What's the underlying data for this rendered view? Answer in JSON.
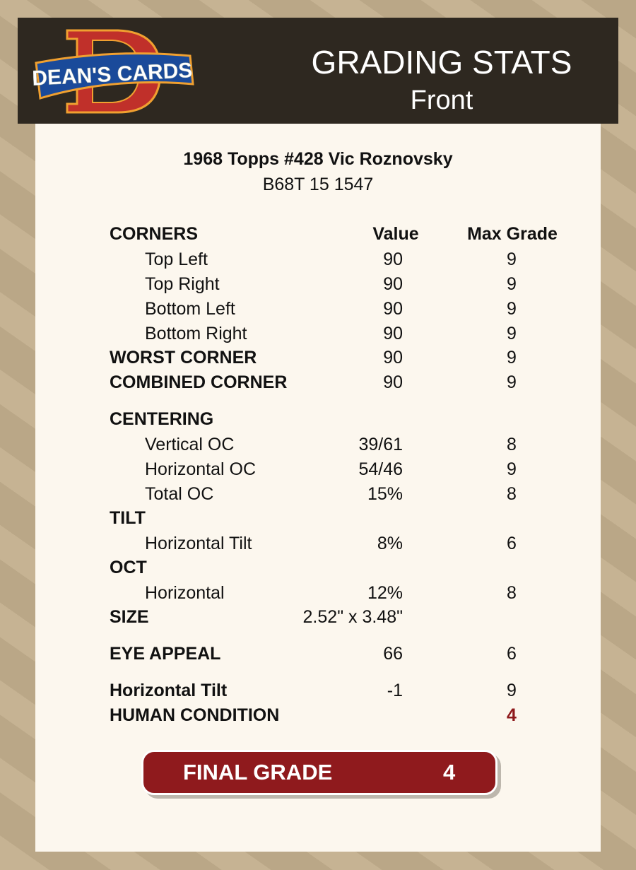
{
  "header": {
    "logo_text": "DEAN'S CARDS",
    "title": "GRADING STATS",
    "subtitle": "Front"
  },
  "card": {
    "title": "1968 Topps #428 Vic Roznovsky",
    "code": "B68T 15 1547"
  },
  "columns": {
    "value": "Value",
    "max_grade": "Max Grade"
  },
  "rows": [
    {
      "label": "CORNERS"
    },
    {
      "label": "Top Left",
      "value": "90",
      "max": "9"
    },
    {
      "label": "Top Right",
      "value": "90",
      "max": "9"
    },
    {
      "label": "Bottom Left",
      "value": "90",
      "max": "9"
    },
    {
      "label": "Bottom Right",
      "value": "90",
      "max": "9"
    },
    {
      "label": "WORST CORNER",
      "value": "90",
      "max": "9"
    },
    {
      "label": "COMBINED CORNER",
      "value": "90",
      "max": "9"
    },
    {
      "label": "CENTERING"
    },
    {
      "label": "Vertical OC",
      "value": "39/61",
      "max": "8"
    },
    {
      "label": "Horizontal OC",
      "value": "54/46",
      "max": "9"
    },
    {
      "label": "Total OC",
      "value": "15%",
      "max": "8"
    },
    {
      "label": "TILT"
    },
    {
      "label": "Horizontal Tilt",
      "value": "8%",
      "max": "6"
    },
    {
      "label": "OCT"
    },
    {
      "label": "Horizontal",
      "value": "12%",
      "max": "8"
    },
    {
      "label": "SIZE",
      "value": "2.52\" x 3.48\""
    },
    {
      "label": "EYE APPEAL",
      "value": "66",
      "max": "6"
    },
    {
      "label": "Horizontal Tilt",
      "value": "-1",
      "max": "9"
    },
    {
      "label": "HUMAN CONDITION",
      "max": "4"
    }
  ],
  "final": {
    "label": "FINAL GRADE",
    "value": "4"
  },
  "colors": {
    "header_bg": "#2e2820",
    "panel_bg": "#fcf7ee",
    "accent_red": "#8f1a1d"
  }
}
